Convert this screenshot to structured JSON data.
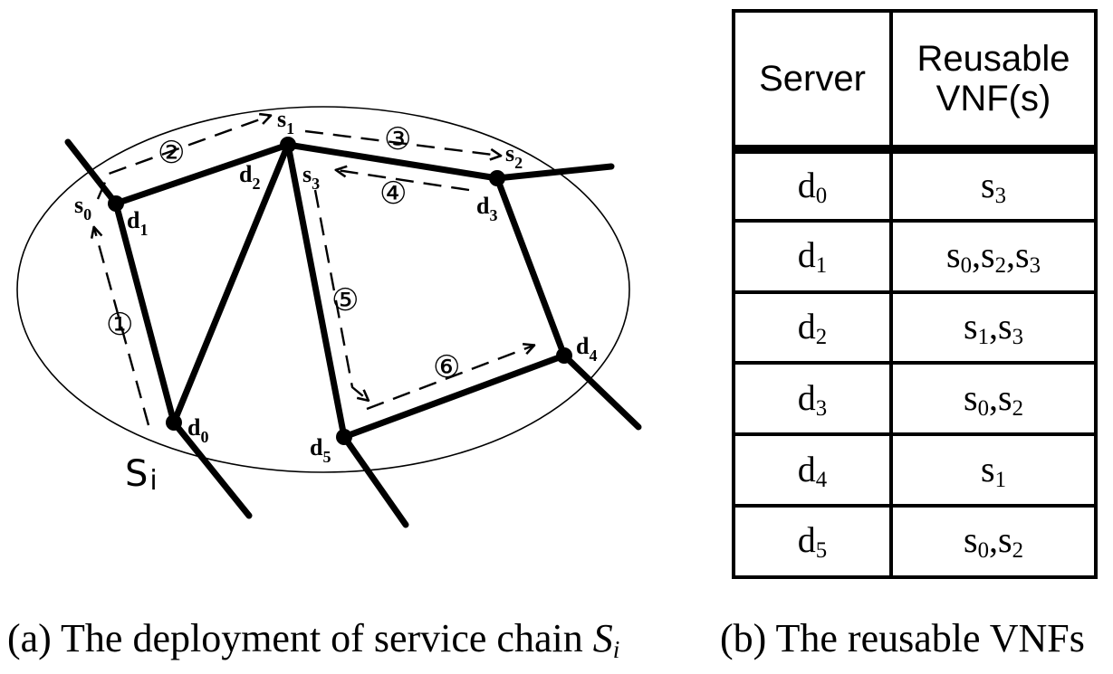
{
  "diagram": {
    "chain_label": {
      "base": "S",
      "sub": "i"
    },
    "nodes": [
      {
        "id": "d0",
        "base": "d",
        "sub": "0"
      },
      {
        "id": "d1",
        "base": "d",
        "sub": "1"
      },
      {
        "id": "d2",
        "base": "d",
        "sub": "2"
      },
      {
        "id": "d3",
        "base": "d",
        "sub": "3"
      },
      {
        "id": "d4",
        "base": "d",
        "sub": "4"
      },
      {
        "id": "d5",
        "base": "d",
        "sub": "5"
      }
    ],
    "vnf_labels": [
      {
        "base": "s",
        "sub": "0"
      },
      {
        "base": "s",
        "sub": "1"
      },
      {
        "base": "s",
        "sub": "2"
      },
      {
        "base": "s",
        "sub": "3"
      }
    ],
    "steps": [
      "①",
      "②",
      "③",
      "④",
      "⑤",
      "⑥"
    ]
  },
  "table": {
    "headers": {
      "server": "Server",
      "reusable_line1": "Reusable",
      "reusable_line2": "VNF(s)"
    },
    "rows": [
      {
        "server": "d",
        "server_sub": "0",
        "vnfs": [
          [
            "s",
            "3"
          ]
        ]
      },
      {
        "server": "d",
        "server_sub": "1",
        "vnfs": [
          [
            "s",
            "0"
          ],
          [
            "s",
            "2"
          ],
          [
            "s",
            "3"
          ]
        ]
      },
      {
        "server": "d",
        "server_sub": "2",
        "vnfs": [
          [
            "s",
            "1"
          ],
          [
            "s",
            "3"
          ]
        ]
      },
      {
        "server": "d",
        "server_sub": "3",
        "vnfs": [
          [
            "s",
            "0"
          ],
          [
            "s",
            "2"
          ]
        ]
      },
      {
        "server": "d",
        "server_sub": "4",
        "vnfs": [
          [
            "s",
            "1"
          ]
        ]
      },
      {
        "server": "d",
        "server_sub": "5",
        "vnfs": [
          [
            "s",
            "0"
          ],
          [
            "s",
            "2"
          ]
        ]
      }
    ]
  },
  "captions": {
    "a_prefix": "(a) The deployment of service chain ",
    "a_var": "S",
    "a_var_sub": "i",
    "b": "(b) The reusable VNFs"
  }
}
